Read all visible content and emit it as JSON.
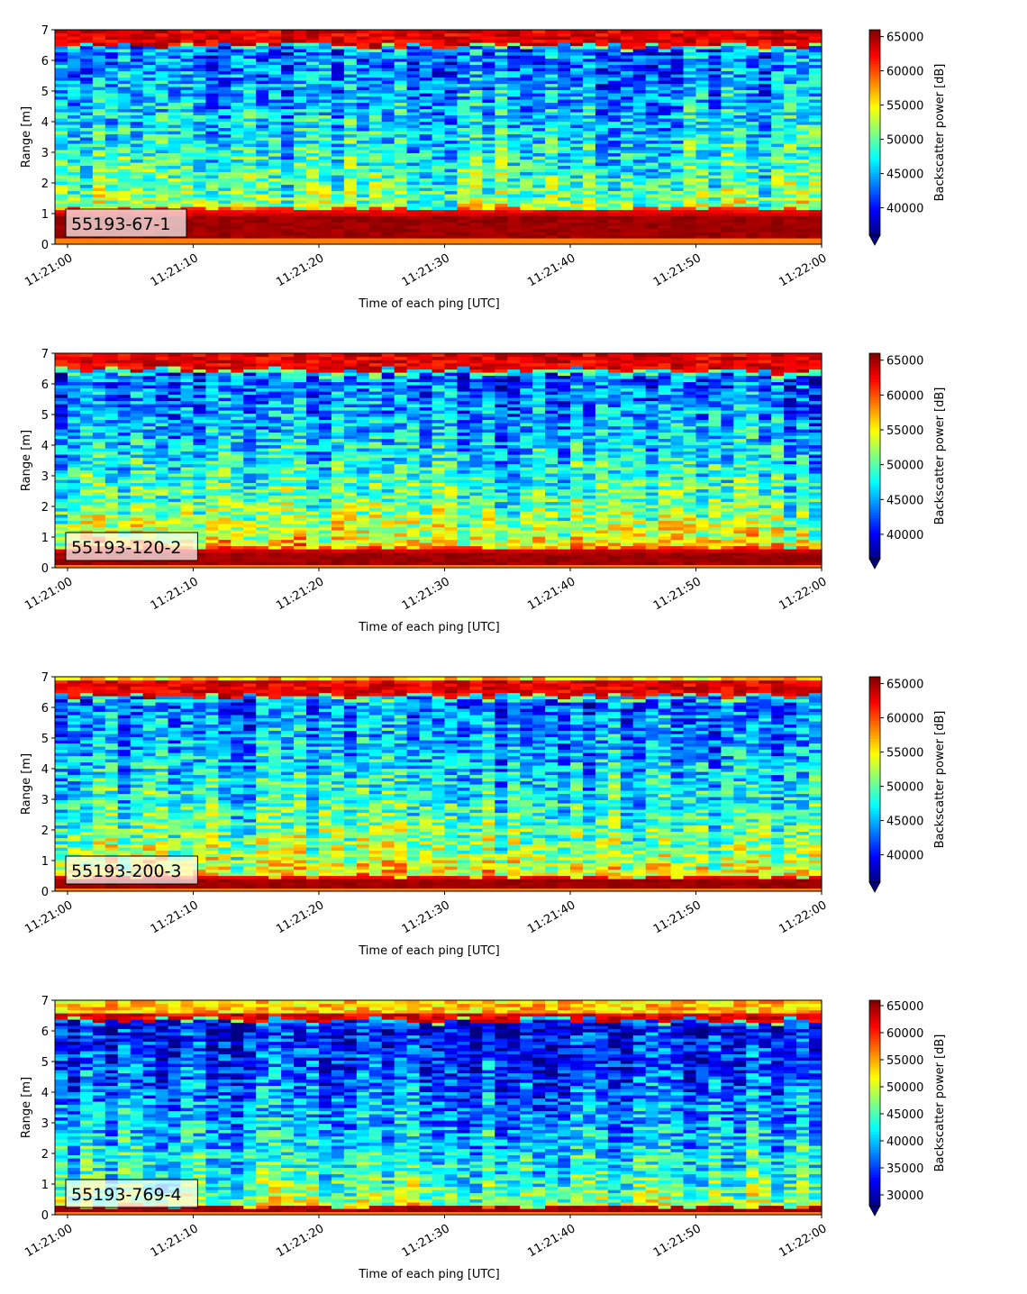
{
  "chart_data": [
    {
      "type": "heatmap",
      "label": "55193-67-1",
      "xlabel": "Time of each ping [UTC]",
      "ylabel": "Range [m]",
      "colorbar_label": "Backscatter power [dB]",
      "x_ticks": [
        "11:21:00",
        "11:21:10",
        "11:21:20",
        "11:21:30",
        "11:21:40",
        "11:21:50",
        "11:22:00"
      ],
      "x_range": [
        "11:20:59",
        "11:22:00"
      ],
      "y_ticks": [
        0,
        1,
        2,
        3,
        4,
        5,
        6,
        7
      ],
      "ylim": [
        0,
        7
      ],
      "colorbar_ticks": [
        40000,
        45000,
        50000,
        55000,
        60000,
        65000
      ],
      "clim": [
        36000,
        66000
      ],
      "colormap": "jet",
      "colorbar_extend": "min",
      "profile": {
        "floor": 0.2,
        "bottom_band": [
          0.25,
          1.15
        ],
        "near_top": 6.42,
        "top_band": [
          6.5,
          7.0
        ],
        "water_low": 0.57,
        "water_high": 0.22
      }
    },
    {
      "type": "heatmap",
      "label": "55193-120-2",
      "xlabel": "Time of each ping [UTC]",
      "ylabel": "Range [m]",
      "colorbar_label": "Backscatter power [dB]",
      "x_ticks": [
        "11:21:00",
        "11:21:10",
        "11:21:20",
        "11:21:30",
        "11:21:40",
        "11:21:50",
        "11:22:00"
      ],
      "x_range": [
        "11:20:59",
        "11:22:00"
      ],
      "y_ticks": [
        0,
        1,
        2,
        3,
        4,
        5,
        6,
        7
      ],
      "ylim": [
        0,
        7
      ],
      "colorbar_ticks": [
        40000,
        45000,
        50000,
        55000,
        60000,
        65000
      ],
      "clim": [
        36500,
        66000
      ],
      "colormap": "jet",
      "colorbar_extend": "min",
      "profile": {
        "floor": 0.1,
        "bottom_band": [
          0.15,
          0.65
        ],
        "near_top": 6.3,
        "top_band": [
          6.45,
          7.0
        ],
        "water_low": 0.68,
        "water_high": 0.2
      }
    },
    {
      "type": "heatmap",
      "label": "55193-200-3",
      "xlabel": "Time of each ping [UTC]",
      "ylabel": "Range [m]",
      "colorbar_label": "Backscatter power [dB]",
      "x_ticks": [
        "11:21:00",
        "11:21:10",
        "11:21:20",
        "11:21:30",
        "11:21:40",
        "11:21:50",
        "11:22:00"
      ],
      "x_range": [
        "11:20:59",
        "11:22:00"
      ],
      "y_ticks": [
        0,
        1,
        2,
        3,
        4,
        5,
        6,
        7
      ],
      "ylim": [
        0,
        7
      ],
      "colorbar_ticks": [
        40000,
        45000,
        50000,
        55000,
        60000,
        65000
      ],
      "clim": [
        36000,
        66000
      ],
      "colormap": "jet",
      "colorbar_extend": "min",
      "profile": {
        "floor": 0.1,
        "bottom_band": [
          0.12,
          0.5
        ],
        "near_top": 6.25,
        "top_band": [
          6.4,
          6.85
        ],
        "water_low": 0.66,
        "water_high": 0.22
      }
    },
    {
      "type": "heatmap",
      "label": "55193-769-4",
      "xlabel": "Time of each ping [UTC]",
      "ylabel": "Range [m]",
      "colorbar_label": "Backscatter power [dB]",
      "x_ticks": [
        "11:21:00",
        "11:21:10",
        "11:21:20",
        "11:21:30",
        "11:21:40",
        "11:21:50",
        "11:22:00"
      ],
      "x_range": [
        "11:20:59",
        "11:22:00"
      ],
      "y_ticks": [
        0,
        1,
        2,
        3,
        4,
        5,
        6,
        7
      ],
      "ylim": [
        0,
        7
      ],
      "colorbar_ticks": [
        30000,
        35000,
        40000,
        45000,
        50000,
        55000,
        60000,
        65000
      ],
      "clim": [
        28000,
        66000
      ],
      "colormap": "jet",
      "colorbar_extend": "min",
      "profile": {
        "floor": 0.12,
        "bottom_band": [
          0.15,
          0.3
        ],
        "near_top": 6.3,
        "top_band": [
          6.35,
          6.6
        ],
        "water_low": 0.58,
        "water_high": 0.12
      }
    }
  ]
}
